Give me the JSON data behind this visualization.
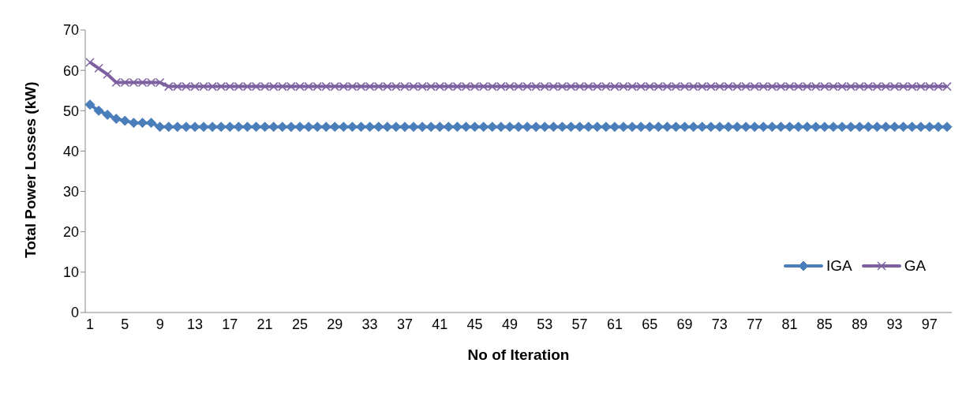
{
  "chart_data": {
    "type": "line",
    "xlabel": "No of Iteration",
    "ylabel": "Total Power Losses (kW)",
    "categories": [
      "1",
      null,
      null,
      null,
      "5",
      null,
      null,
      null,
      "9",
      null,
      null,
      null,
      "13",
      null,
      null,
      null,
      "17",
      null,
      null,
      null,
      "21",
      null,
      null,
      null,
      "25",
      null,
      null,
      null,
      "29",
      null,
      null,
      null,
      "33",
      null,
      null,
      null,
      "37",
      null,
      null,
      null,
      "41",
      null,
      null,
      null,
      "45",
      null,
      null,
      null,
      "49",
      null,
      null,
      null,
      "53",
      null,
      null,
      null,
      "57",
      null,
      null,
      null,
      "61",
      null,
      null,
      null,
      "65",
      null,
      null,
      null,
      "69",
      null,
      null,
      null,
      "73",
      null,
      null,
      null,
      "77",
      null,
      null,
      null,
      "81",
      null,
      null,
      null,
      "85",
      null,
      null,
      null,
      "89",
      null,
      null,
      null,
      "93",
      null,
      null,
      null,
      "97",
      null,
      null
    ],
    "series": [
      {
        "name": "IGA",
        "color": "#4a7ebb",
        "marker": "diamond",
        "values": [
          51.5,
          50,
          49,
          48,
          47.5,
          47,
          47,
          47,
          46,
          46,
          46,
          46,
          46,
          46,
          46,
          46,
          46,
          46,
          46,
          46,
          46,
          46,
          46,
          46,
          46,
          46,
          46,
          46,
          46,
          46,
          46,
          46,
          46,
          46,
          46,
          46,
          46,
          46,
          46,
          46,
          46,
          46,
          46,
          46,
          46,
          46,
          46,
          46,
          46,
          46,
          46,
          46,
          46,
          46,
          46,
          46,
          46,
          46,
          46,
          46,
          46,
          46,
          46,
          46,
          46,
          46,
          46,
          46,
          46,
          46,
          46,
          46,
          46,
          46,
          46,
          46,
          46,
          46,
          46,
          46,
          46,
          46,
          46,
          46,
          46,
          46,
          46,
          46,
          46,
          46,
          46,
          46,
          46,
          46,
          46,
          46,
          46,
          46,
          46
        ]
      },
      {
        "name": "GA",
        "color": "#7d60a0",
        "marker": "cross",
        "values": [
          62,
          60.5,
          59,
          57,
          57,
          57,
          57,
          57,
          57,
          56,
          56,
          56,
          56,
          56,
          56,
          56,
          56,
          56,
          56,
          56,
          56,
          56,
          56,
          56,
          56,
          56,
          56,
          56,
          56,
          56,
          56,
          56,
          56,
          56,
          56,
          56,
          56,
          56,
          56,
          56,
          56,
          56,
          56,
          56,
          56,
          56,
          56,
          56,
          56,
          56,
          56,
          56,
          56,
          56,
          56,
          56,
          56,
          56,
          56,
          56,
          56,
          56,
          56,
          56,
          56,
          56,
          56,
          56,
          56,
          56,
          56,
          56,
          56,
          56,
          56,
          56,
          56,
          56,
          56,
          56,
          56,
          56,
          56,
          56,
          56,
          56,
          56,
          56,
          56,
          56,
          56,
          56,
          56,
          56,
          56,
          56,
          56,
          56,
          56
        ]
      }
    ],
    "ylim": [
      0,
      70
    ],
    "yticks": [
      0,
      10,
      20,
      30,
      40,
      50,
      60,
      70
    ],
    "legend": "right"
  }
}
